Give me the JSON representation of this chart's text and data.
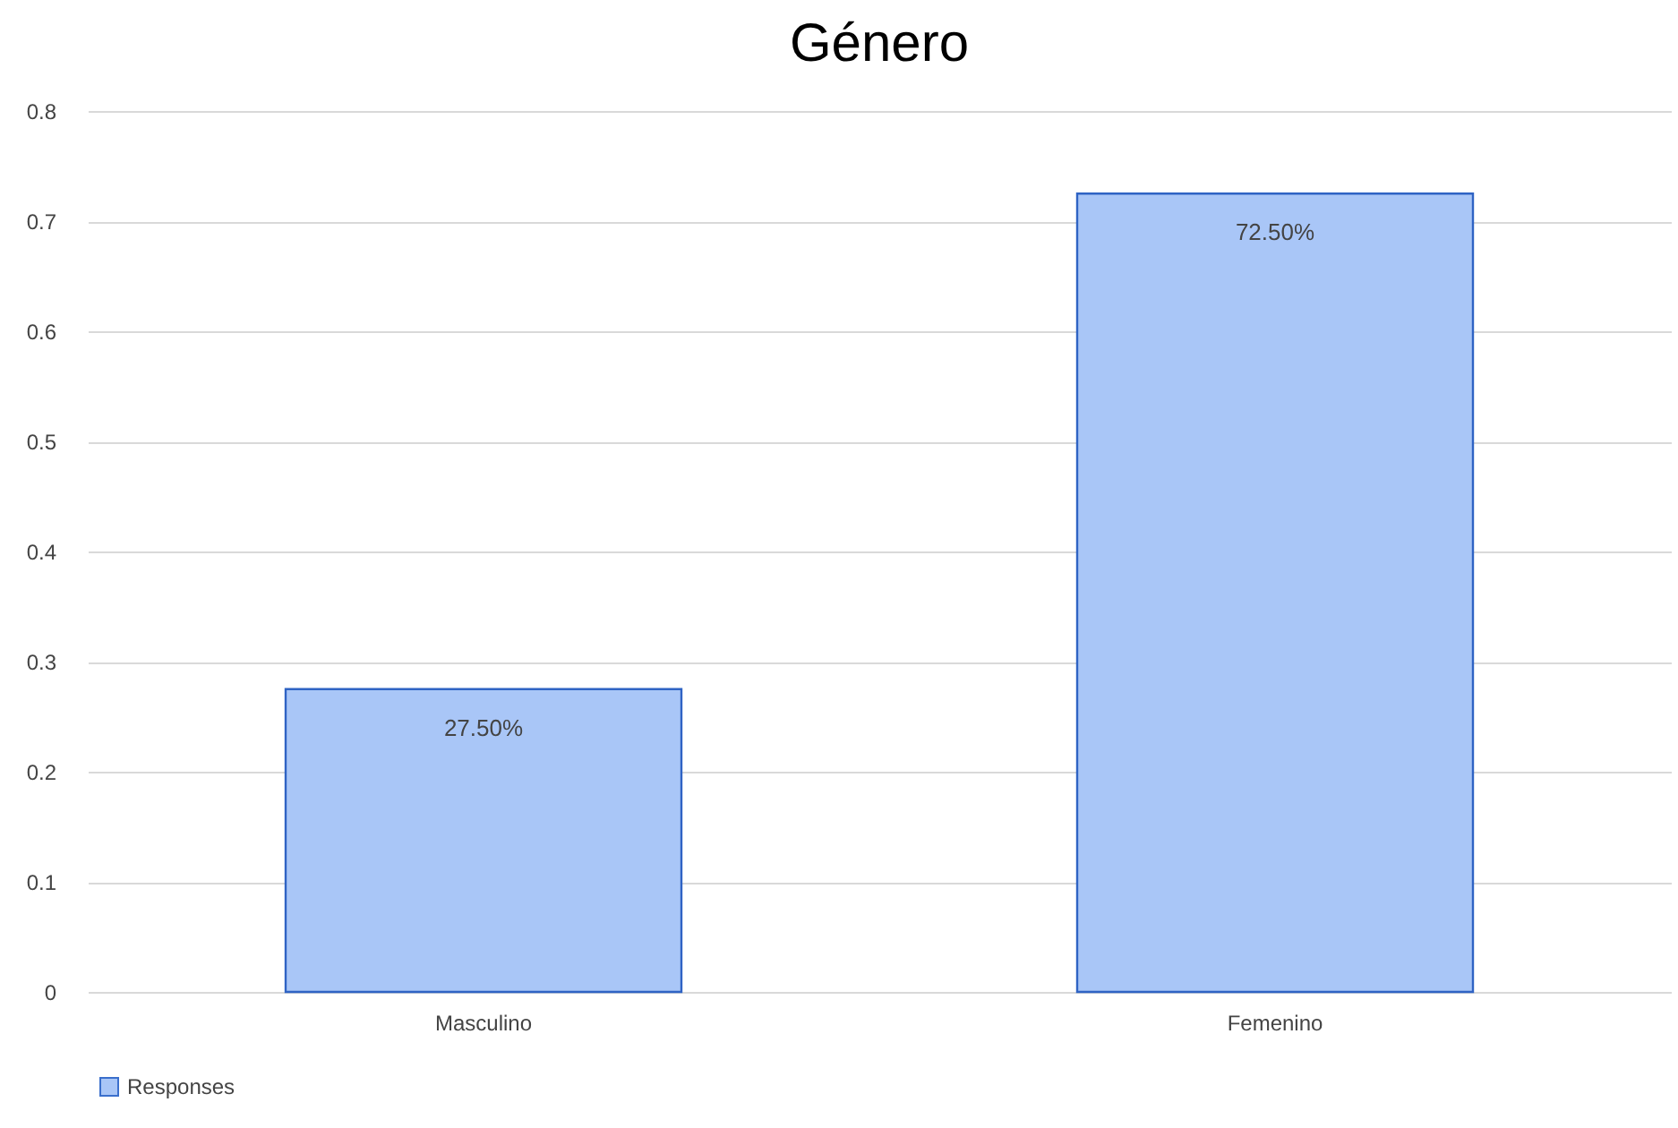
{
  "chart_data": {
    "type": "bar",
    "title": "Género",
    "categories": [
      "Masculino",
      "Femenino"
    ],
    "series": [
      {
        "name": "Responses",
        "color": "#a9c6f7",
        "values": [
          0.275,
          0.725
        ],
        "value_labels": [
          "27.50%",
          "72.50%"
        ]
      }
    ],
    "ylim": [
      0,
      0.8
    ],
    "yticks": [
      0,
      0.1,
      0.2,
      0.3,
      0.4,
      0.5,
      0.6,
      0.7,
      0.8
    ],
    "grid": "y",
    "legend": "bottom"
  }
}
